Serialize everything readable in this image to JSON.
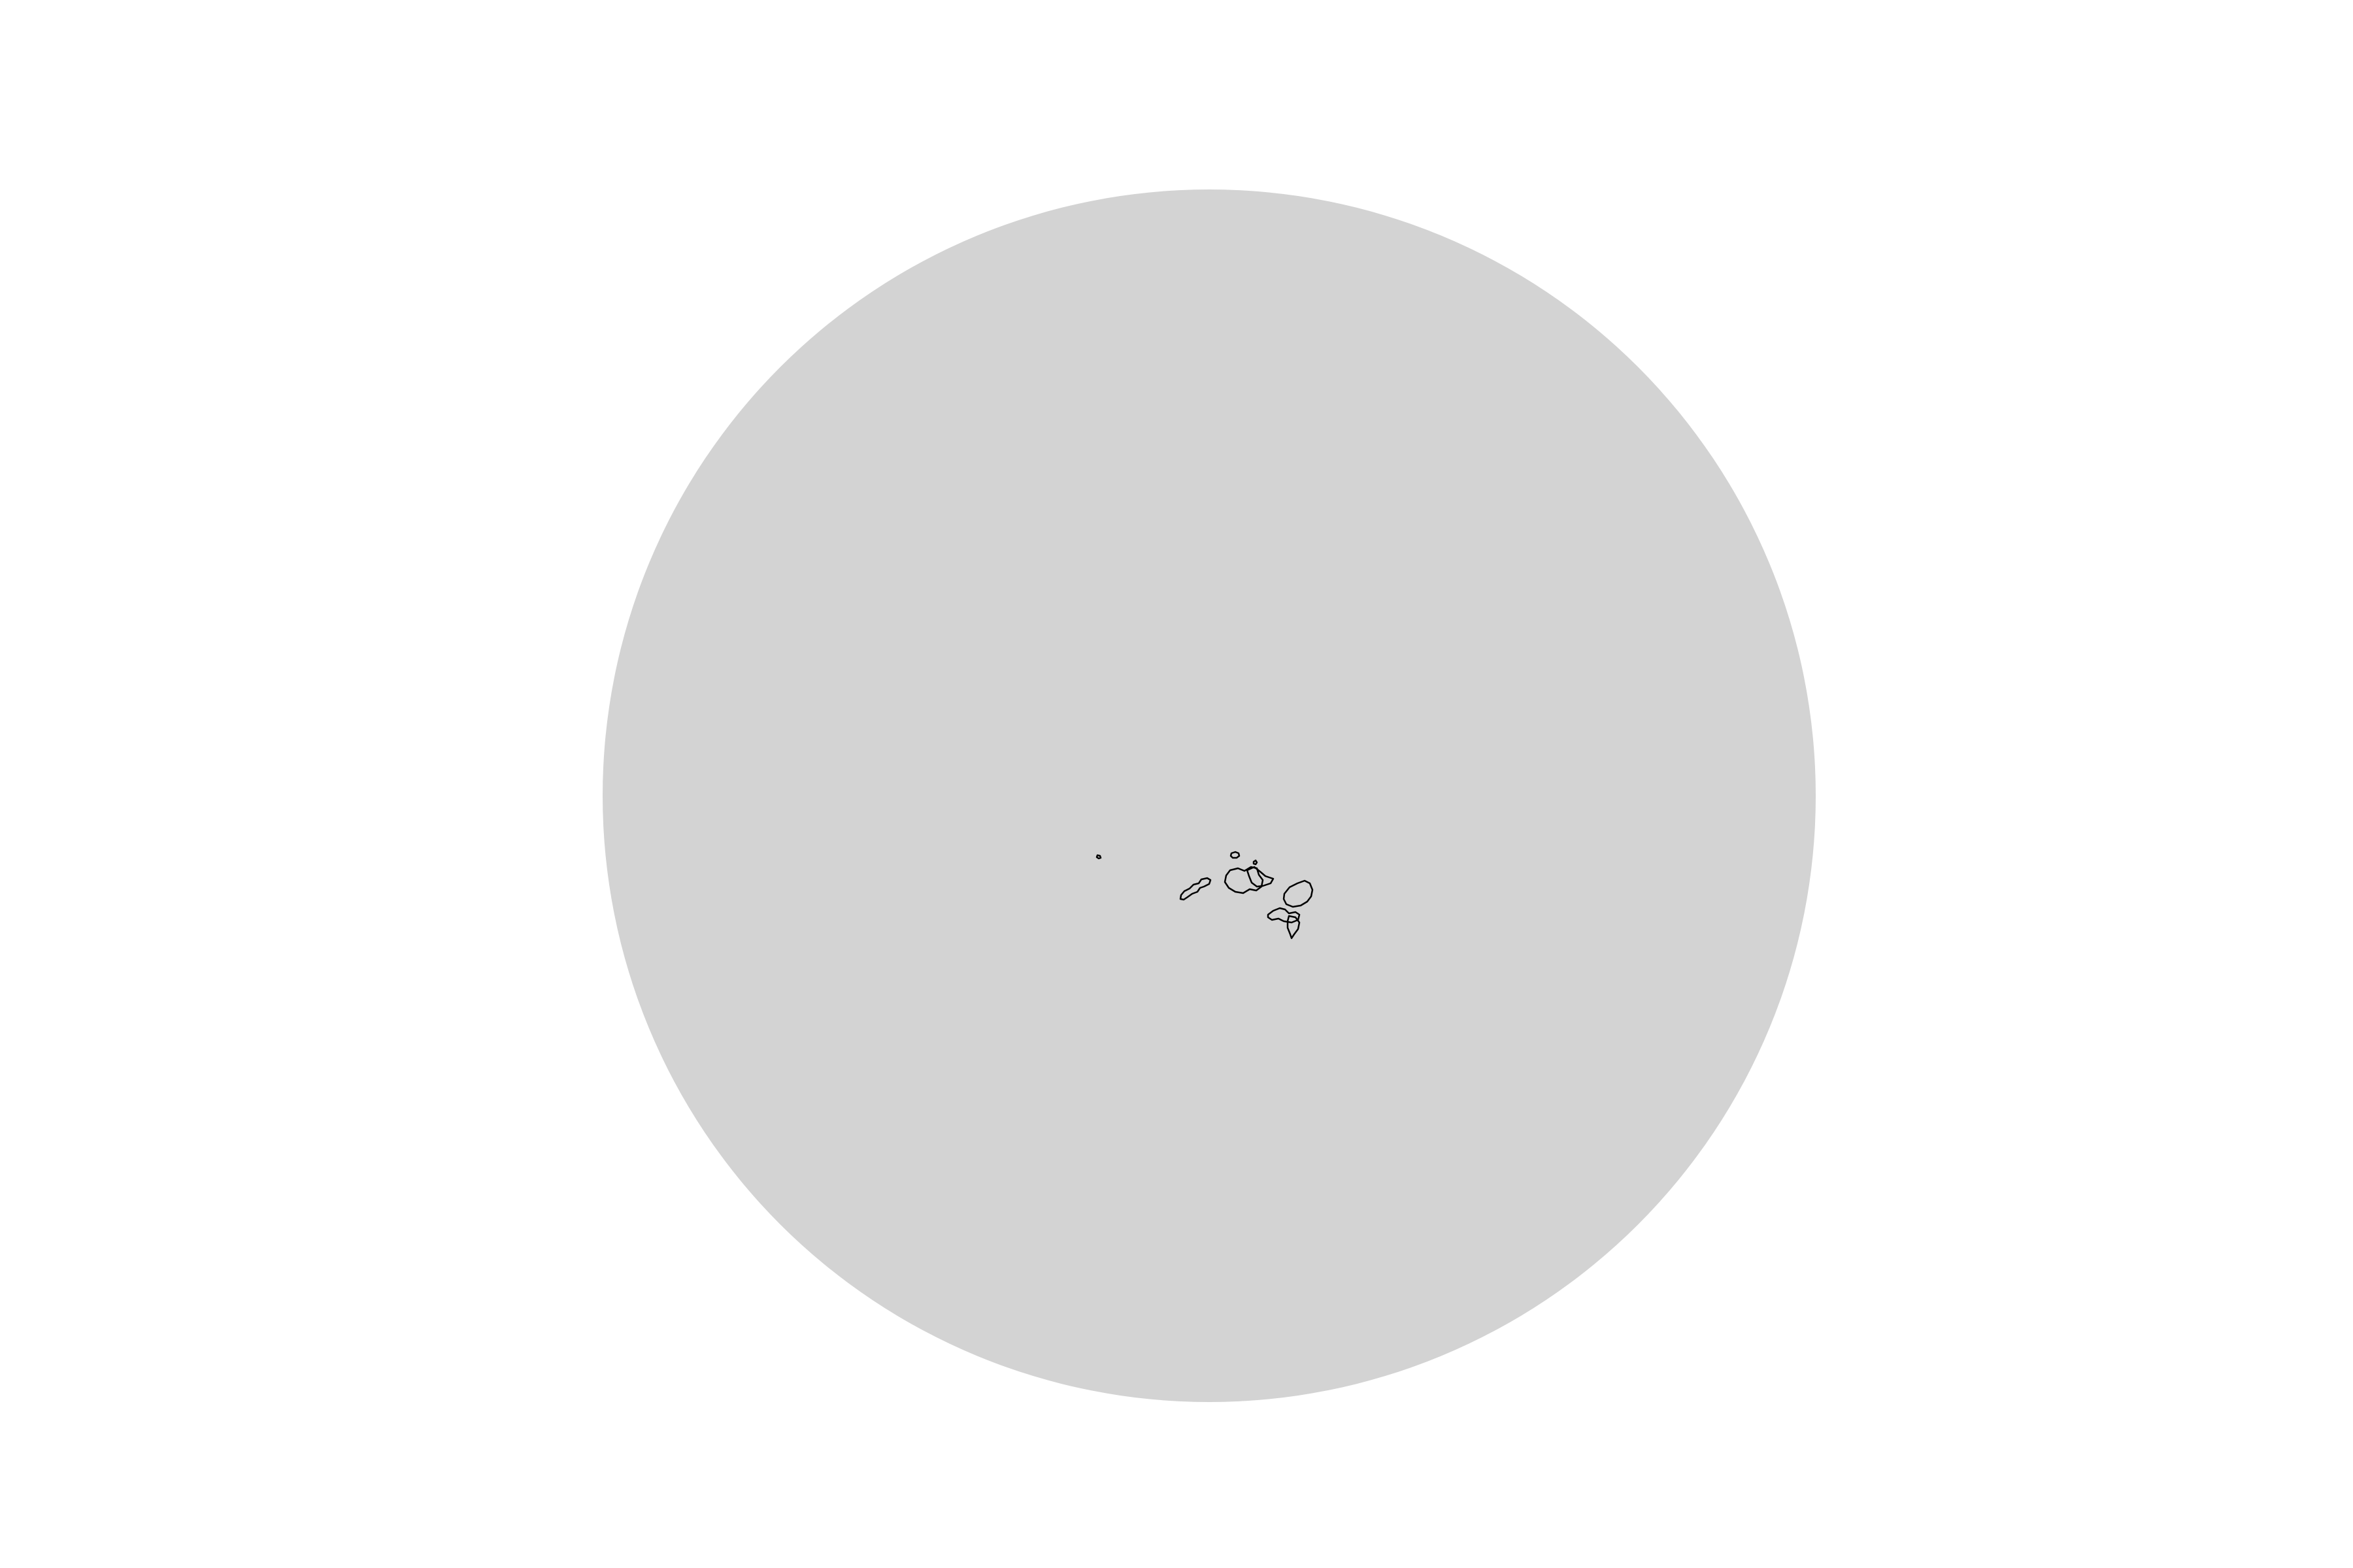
{
  "map": {
    "projection": "orthographic",
    "globe_fill": "#d3d3d3",
    "outline_color": "#000000",
    "background": "#ffffff",
    "features": [
      {
        "name": "islet-west"
      },
      {
        "name": "islet-north-a"
      },
      {
        "name": "islet-north-b"
      },
      {
        "name": "island-elongated-west"
      },
      {
        "name": "island-central"
      },
      {
        "name": "island-central-east"
      },
      {
        "name": "island-round-east"
      },
      {
        "name": "island-south-cluster"
      },
      {
        "name": "island-south-tip"
      }
    ]
  }
}
